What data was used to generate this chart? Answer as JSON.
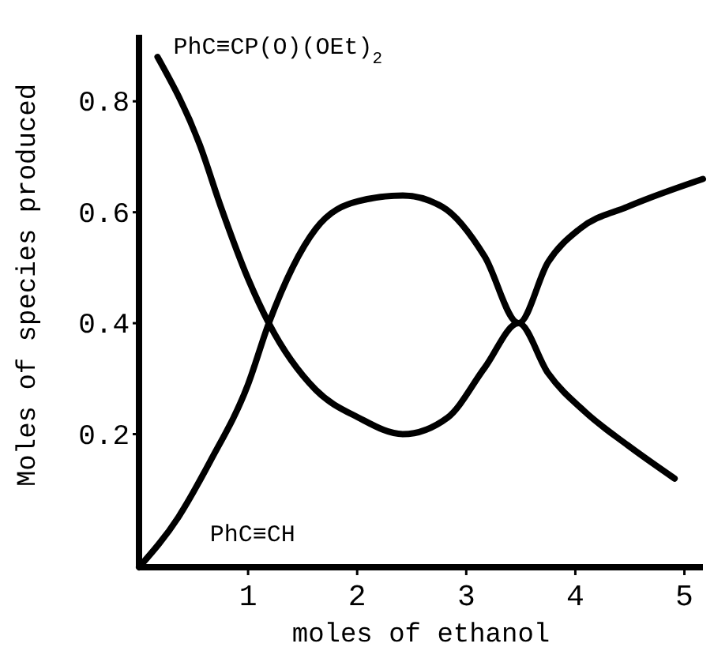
{
  "chart_data": {
    "type": "line",
    "xlabel": "moles of ethanol",
    "ylabel": "Moles of species produced",
    "xlim": [
      0,
      5.17
    ],
    "ylim": [
      -0.04,
      0.92
    ],
    "xticks": [
      1,
      2,
      3,
      4,
      5
    ],
    "yticks": [
      0.2,
      0.4,
      0.6,
      0.8
    ],
    "marker": "none",
    "line_style": "solid",
    "series": [
      {
        "name": "PhC≡CP(O)(OEt)$_{2}$",
        "color": "#000000",
        "x": [
          0.17,
          0.56,
          0.75,
          1.0,
          1.19,
          1.62,
          2.01,
          2.42,
          2.83,
          3.17,
          3.48,
          3.75,
          4.09,
          4.48,
          4.91
        ],
        "values": [
          0.88,
          0.72,
          0.61,
          0.48,
          0.4,
          0.28,
          0.23,
          0.2,
          0.23,
          0.32,
          0.4,
          0.31,
          0.24,
          0.18,
          0.12
        ]
      },
      {
        "name": "PhC≡CH",
        "color": "#000000",
        "x": [
          0,
          0.36,
          0.65,
          1.0,
          1.19,
          1.62,
          2.01,
          2.42,
          2.78,
          3.17,
          3.48,
          3.75,
          4.04,
          4.48,
          5.17
        ],
        "values": [
          -0.04,
          0.05,
          0.15,
          0.29,
          0.4,
          0.57,
          0.62,
          0.63,
          0.61,
          0.52,
          0.4,
          0.51,
          0.57,
          0.61,
          0.66
        ]
      }
    ]
  }
}
